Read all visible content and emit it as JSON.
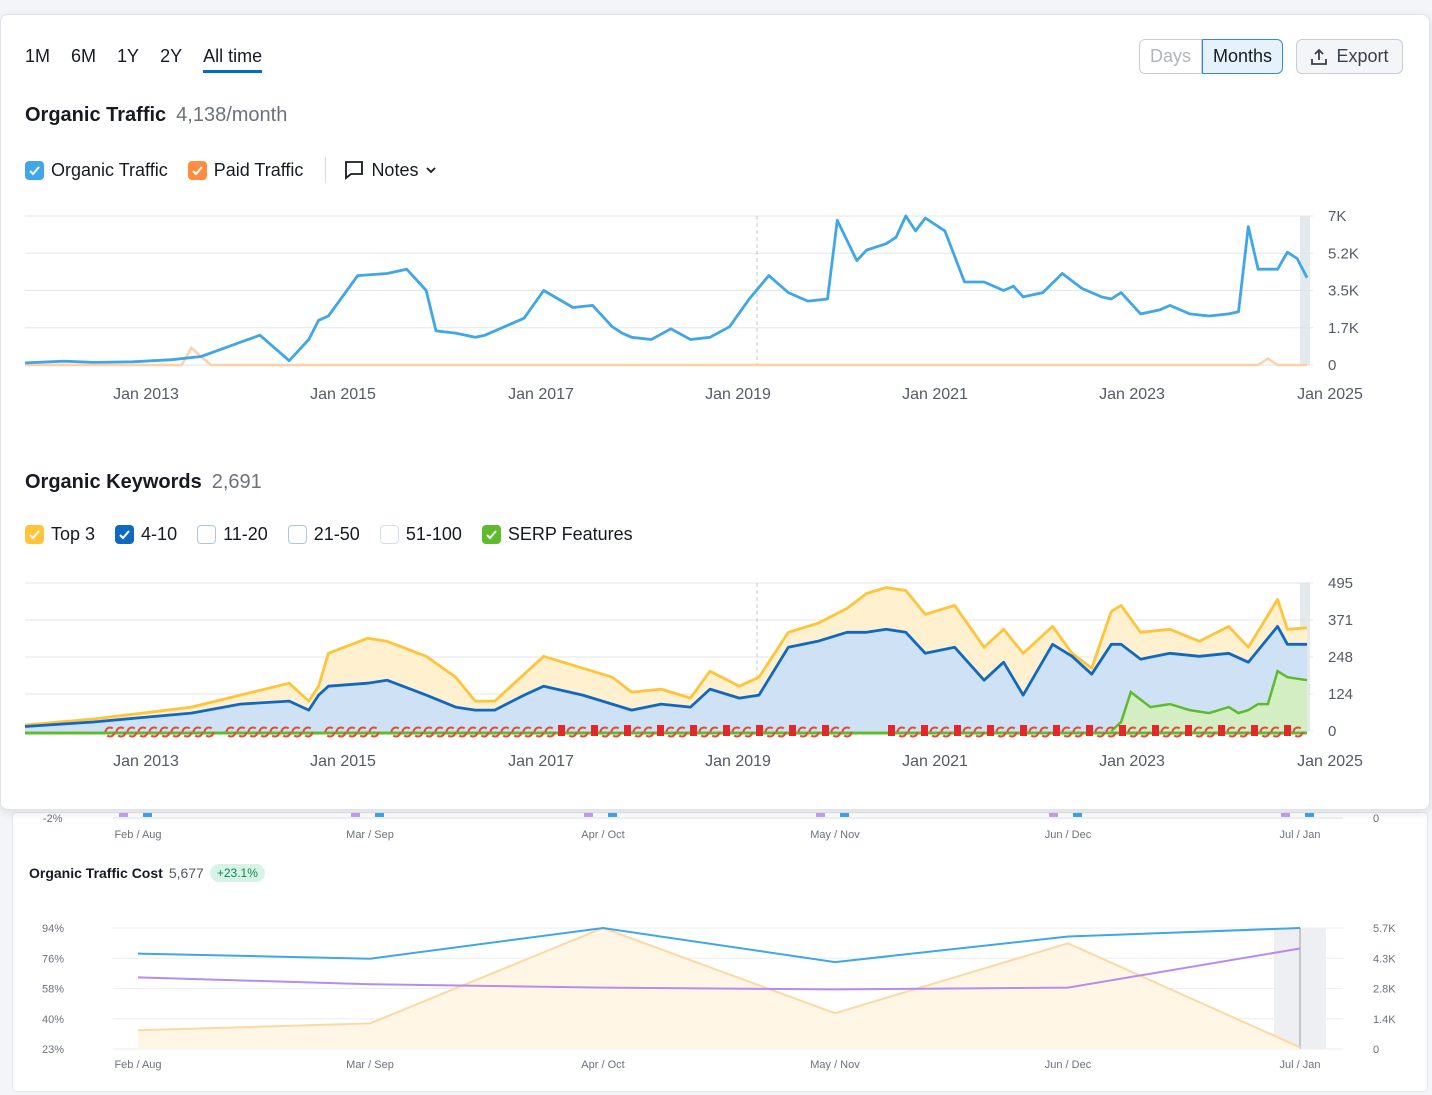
{
  "periods": {
    "items": [
      "1M",
      "6M",
      "1Y",
      "2Y",
      "All time"
    ],
    "active": "All time"
  },
  "granularity": {
    "days": "Days",
    "months": "Months",
    "active": "Months"
  },
  "export_label": "Export",
  "organic_traffic": {
    "title": "Organic Traffic",
    "value": "4,138/month",
    "legend": {
      "organic": "Organic Traffic",
      "paid": "Paid Traffic",
      "notes": "Notes"
    },
    "colors": {
      "organic": "#3fa6e8",
      "paid": "#ff8c42"
    }
  },
  "organic_keywords": {
    "title": "Organic Keywords",
    "value": "2,691",
    "legend": [
      "Top 3",
      "4-10",
      "11-20",
      "21-50",
      "51-100",
      "SERP Features"
    ],
    "colors": {
      "top3": "#ffc43a",
      "pos4_10": "#1168c0",
      "serp": "#5dbb2c"
    }
  },
  "traffic_cost": {
    "title": "Organic Traffic Cost",
    "value": "5,677",
    "badge": "+23.1%"
  },
  "chart_data": [
    {
      "type": "line",
      "name": "Organic Traffic",
      "x_ticks": [
        "Jan 2013",
        "Jan 2015",
        "Jan 2017",
        "Jan 2019",
        "Jan 2021",
        "Jan 2023",
        "Jan 2025"
      ],
      "y_ticks": [
        "7K",
        "5.2K",
        "3.5K",
        "1.7K",
        "0"
      ],
      "ylim": [
        0,
        7000
      ],
      "xlim": [
        2011.8,
        2024.9
      ],
      "series": [
        {
          "name": "Organic Traffic",
          "x": [
            2011.8,
            2012.2,
            2012.5,
            2012.9,
            2013.3,
            2013.6,
            2013.9,
            2014.2,
            2014.5,
            2014.7,
            2014.8,
            2014.9,
            2015.2,
            2015.5,
            2015.7,
            2015.9,
            2016.0,
            2016.2,
            2016.4,
            2016.5,
            2016.9,
            2017.1,
            2017.4,
            2017.6,
            2017.8,
            2017.9,
            2018.0,
            2018.2,
            2018.4,
            2018.6,
            2018.8,
            2019.0,
            2019.2,
            2019.4,
            2019.6,
            2019.8,
            2020.0,
            2020.1,
            2020.3,
            2020.4,
            2020.6,
            2020.7,
            2020.8,
            2020.9,
            2021.0,
            2021.2,
            2021.4,
            2021.6,
            2021.8,
            2021.9,
            2022.0,
            2022.2,
            2022.4,
            2022.6,
            2022.8,
            2022.9,
            2023.0,
            2023.2,
            2023.4,
            2023.5,
            2023.7,
            2023.9,
            2024.1,
            2024.2,
            2024.3,
            2024.4,
            2024.5,
            2024.6,
            2024.7,
            2024.8,
            2024.9
          ],
          "y": [
            100,
            180,
            120,
            150,
            250,
            400,
            900,
            1400,
            200,
            1200,
            2100,
            2300,
            4200,
            4300,
            4500,
            3500,
            1600,
            1500,
            1300,
            1400,
            2200,
            3500,
            2700,
            2800,
            1800,
            1500,
            1300,
            1200,
            1700,
            1200,
            1300,
            1800,
            3100,
            4200,
            3400,
            3000,
            3100,
            6800,
            4900,
            5400,
            5700,
            6000,
            7000,
            6300,
            6900,
            6300,
            3900,
            3900,
            3500,
            3700,
            3200,
            3400,
            4300,
            3600,
            3200,
            3100,
            3400,
            2400,
            2600,
            2800,
            2400,
            2300,
            2400,
            2500,
            6500,
            4500,
            4500,
            4500,
            5300,
            5000,
            4100
          ]
        },
        {
          "name": "Paid Traffic",
          "x": [
            2011.8,
            2013.4,
            2013.5,
            2013.7,
            2014.0,
            2024.4,
            2024.5,
            2024.6,
            2024.9
          ],
          "y": [
            0,
            0,
            800,
            0,
            0,
            0,
            300,
            0,
            0
          ]
        }
      ]
    },
    {
      "type": "area",
      "name": "Organic Keywords",
      "x_ticks": [
        "Jan 2013",
        "Jan 2015",
        "Jan 2017",
        "Jan 2019",
        "Jan 2021",
        "Jan 2023",
        "Jan 2025"
      ],
      "y_ticks": [
        "495",
        "371",
        "248",
        "124",
        "0"
      ],
      "ylim": [
        0,
        495
      ],
      "xlim": [
        2011.8,
        2024.9
      ],
      "series": [
        {
          "name": "Top 3",
          "x": [
            2011.8,
            2012.5,
            2013.0,
            2013.5,
            2014.0,
            2014.5,
            2014.7,
            2014.8,
            2014.9,
            2015.3,
            2015.5,
            2015.9,
            2016.2,
            2016.4,
            2016.6,
            2016.9,
            2017.1,
            2017.5,
            2017.8,
            2018.0,
            2018.3,
            2018.6,
            2018.8,
            2019.1,
            2019.3,
            2019.6,
            2019.9,
            2020.2,
            2020.4,
            2020.6,
            2020.8,
            2021.0,
            2021.3,
            2021.6,
            2021.8,
            2022.0,
            2022.3,
            2022.5,
            2022.7,
            2022.9,
            2023.0,
            2023.2,
            2023.5,
            2023.8,
            2024.1,
            2024.3,
            2024.6,
            2024.7,
            2024.9
          ],
          "y": [
            20,
            40,
            60,
            80,
            120,
            160,
            100,
            150,
            260,
            310,
            300,
            250,
            180,
            100,
            100,
            190,
            250,
            210,
            180,
            130,
            140,
            110,
            200,
            150,
            180,
            330,
            360,
            410,
            460,
            480,
            470,
            390,
            420,
            280,
            340,
            260,
            350,
            260,
            210,
            400,
            420,
            330,
            340,
            300,
            350,
            280,
            440,
            340,
            345
          ]
        },
        {
          "name": "4-10",
          "x": [
            2011.8,
            2012.5,
            2013.0,
            2013.5,
            2014.0,
            2014.5,
            2014.7,
            2014.8,
            2014.9,
            2015.3,
            2015.5,
            2015.9,
            2016.2,
            2016.4,
            2016.6,
            2016.9,
            2017.1,
            2017.5,
            2017.8,
            2018.0,
            2018.3,
            2018.6,
            2018.8,
            2019.1,
            2019.3,
            2019.6,
            2019.9,
            2020.2,
            2020.4,
            2020.6,
            2020.8,
            2021.0,
            2021.3,
            2021.6,
            2021.8,
            2022.0,
            2022.3,
            2022.5,
            2022.7,
            2022.9,
            2023.0,
            2023.2,
            2023.5,
            2023.8,
            2024.1,
            2024.3,
            2024.6,
            2024.7,
            2024.9
          ],
          "y": [
            15,
            30,
            45,
            60,
            90,
            100,
            70,
            120,
            150,
            160,
            170,
            120,
            80,
            70,
            70,
            120,
            150,
            120,
            90,
            70,
            90,
            80,
            140,
            110,
            120,
            280,
            300,
            330,
            330,
            340,
            330,
            260,
            280,
            170,
            230,
            120,
            290,
            250,
            190,
            290,
            290,
            240,
            260,
            250,
            260,
            230,
            350,
            290,
            290
          ]
        },
        {
          "name": "SERP Features",
          "x": [
            2022.9,
            2023.0,
            2023.1,
            2023.3,
            2023.5,
            2023.7,
            2023.9,
            2024.1,
            2024.2,
            2024.3,
            2024.4,
            2024.5,
            2024.6,
            2024.7,
            2024.9
          ],
          "y": [
            0,
            30,
            130,
            80,
            90,
            70,
            60,
            80,
            60,
            70,
            90,
            90,
            200,
            180,
            170
          ]
        }
      ]
    },
    {
      "type": "line",
      "name": "Organic Traffic Cost",
      "categories": [
        "Feb / Aug",
        "Mar / Sep",
        "Apr / Oct",
        "May / Nov",
        "Jun / Dec",
        "Jul / Jan"
      ],
      "y_left_ticks": [
        "94%",
        "76%",
        "58%",
        "40%",
        "23%"
      ],
      "y_right_ticks": [
        "5.7K",
        "4.3K",
        "2.8K",
        "1.4K",
        "0"
      ],
      "ylim_left": [
        23,
        94
      ],
      "series": [
        {
          "name": "blue",
          "values": [
            79,
            76,
            94,
            74,
            89,
            94
          ]
        },
        {
          "name": "purple",
          "values": [
            65,
            61,
            59,
            58,
            59,
            82
          ]
        },
        {
          "name": "area",
          "values": [
            34,
            38,
            94,
            44,
            85,
            24
          ]
        }
      ]
    }
  ]
}
